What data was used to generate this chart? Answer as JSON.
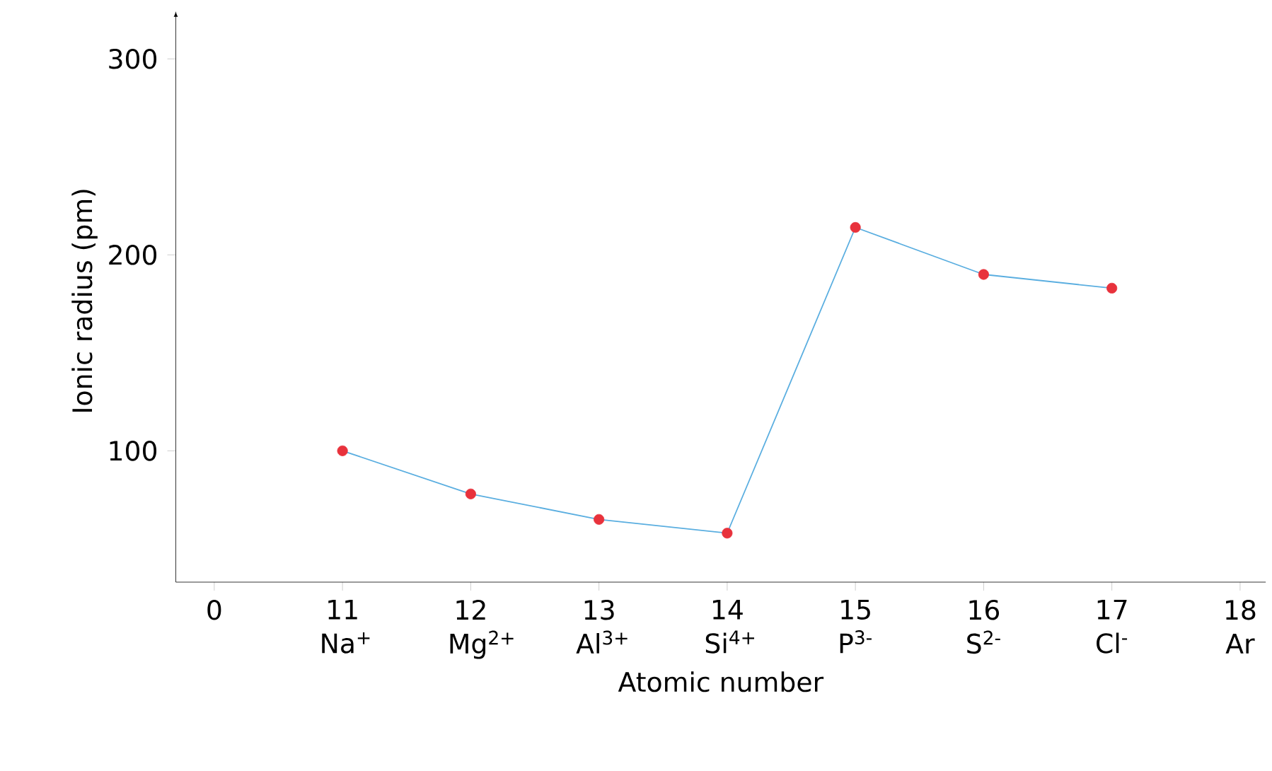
{
  "chart_data": {
    "type": "line",
    "xlabel": "Atomic number",
    "ylabel": "Ionic radius (pm)",
    "categories": [
      "0",
      "11 Na$^{+}$",
      "12 Mg$^{2+}$",
      "13 Al$^{3+}$",
      "14 Si$^{4+}$",
      "15 P$^{3-}$",
      "16 S$^{2-}$",
      "17 Cl$^{-}$",
      "18 Ar"
    ],
    "series": [
      {
        "color": "#5aaee0",
        "values": [
          null,
          100,
          78,
          65,
          58,
          214,
          190,
          183,
          null
        ],
        "colors": [
          null,
          "#e8323c",
          "#e8323c",
          "#e8323c",
          "#e8323c",
          "#e8323c",
          "#e8323c",
          "#e8323c",
          null
        ]
      }
    ],
    "ylim": [
      33,
      320
    ],
    "yticks": [
      100,
      200,
      300
    ],
    "marker": "circle",
    "grid": false,
    "legend": false
  }
}
